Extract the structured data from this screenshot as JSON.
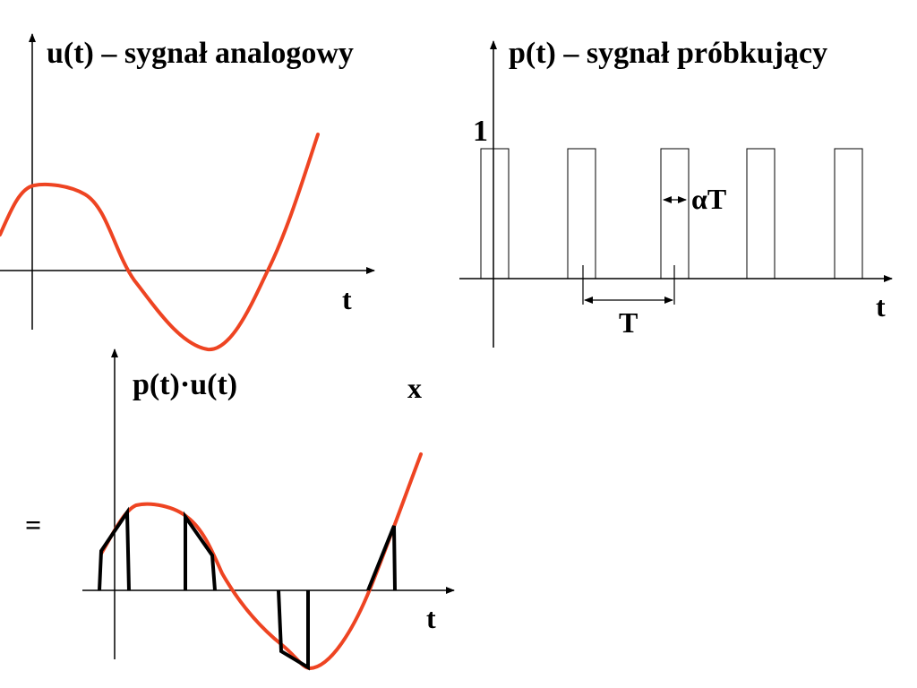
{
  "panel_analog": {
    "title": "u(t) – sygnał analogowy",
    "axis_label": "t"
  },
  "panel_sampling": {
    "title": "p(t) – sygnał próbkujący",
    "level_label": "1",
    "pulse_width_label": "αT",
    "period_label": "T",
    "axis_label": "t"
  },
  "panel_product": {
    "title": "p(t)·u(t)",
    "times_sign": "x",
    "equals_sign": "=",
    "axis_label": "t"
  },
  "colors": {
    "signal": "#ee4422",
    "axes": "#000000",
    "pulses": "#000000",
    "samples": "#000000",
    "background": "#ffffff"
  }
}
